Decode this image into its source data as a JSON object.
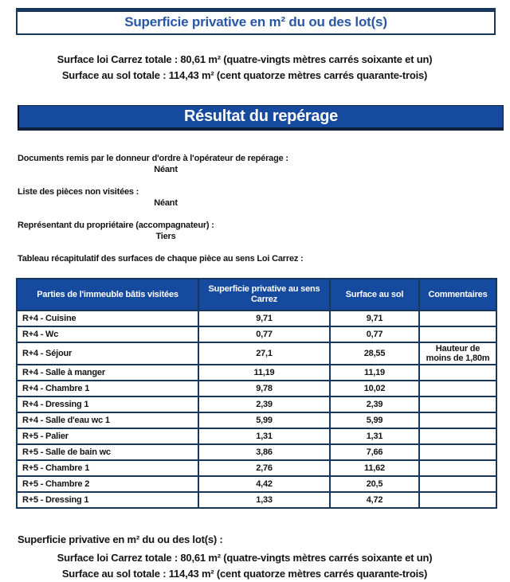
{
  "header": {
    "title": "Superficie privative en m² du ou des lot(s)"
  },
  "summary_top": {
    "line1": "Surface loi Carrez totale : 80,61 m² (quatre-vingts mètres carrés soixante et un)",
    "line2": "Surface au sol totale : 114,43 m² (cent quatorze mètres carrés quarante-trois)"
  },
  "banner": {
    "title": "Résultat du repérage"
  },
  "fields": [
    {
      "label": "Documents remis par le donneur d'ordre à l'opérateur de repérage :",
      "value": "Néant"
    },
    {
      "label": "Liste des pièces non visitées :",
      "value": "Néant"
    },
    {
      "label": "Représentant du propriétaire (accompagnateur) :",
      "value": "Tiers"
    }
  ],
  "table_intro": "Tableau récapitulatif des surfaces de chaque pièce au sens Loi Carrez :",
  "table": {
    "headers": [
      "Parties de l'immeuble bâtis visitées",
      "Superficie privative au sens Carrez",
      "Surface au sol",
      "Commentaires"
    ],
    "rows": [
      [
        "R+4 - Cuisine",
        "9,71",
        "9,71",
        ""
      ],
      [
        "R+4 - Wc",
        "0,77",
        "0,77",
        ""
      ],
      [
        "R+4 - Séjour",
        "27,1",
        "28,55",
        "Hauteur de moins de 1,80m"
      ],
      [
        "R+4 - Salle à manger",
        "11,19",
        "11,19",
        ""
      ],
      [
        "R+4 - Chambre 1",
        "9,78",
        "10,02",
        ""
      ],
      [
        "R+4 - Dressing 1",
        "2,39",
        "2,39",
        ""
      ],
      [
        "R+4 - Salle d'eau wc 1",
        "5,99",
        "5,99",
        ""
      ],
      [
        "R+5 - Palier",
        "1,31",
        "1,31",
        ""
      ],
      [
        "R+5 - Salle de bain wc",
        "3,86",
        "7,66",
        ""
      ],
      [
        "R+5 - Chambre 1",
        "2,76",
        "11,62",
        ""
      ],
      [
        "R+5 - Chambre 2",
        "4,42",
        "20,5",
        ""
      ],
      [
        "R+5 - Dressing 1",
        "1,33",
        "4,72",
        ""
      ]
    ]
  },
  "summary_bottom": {
    "heading": "Superficie privative en m² du ou des lot(s) :",
    "line1": "Surface loi Carrez totale : 80,61 m² (quatre-vingts mètres carrés soixante et un)",
    "line2": "Surface au sol totale : 114,43 m² (cent quatorze mètres carrés quarante-trois)"
  },
  "colors": {
    "accent_blue": "#164a9e",
    "border_navy": "#17375d",
    "title_text_blue": "#2a57a5",
    "body_text": "#141414",
    "header_text": "#ffffff"
  }
}
